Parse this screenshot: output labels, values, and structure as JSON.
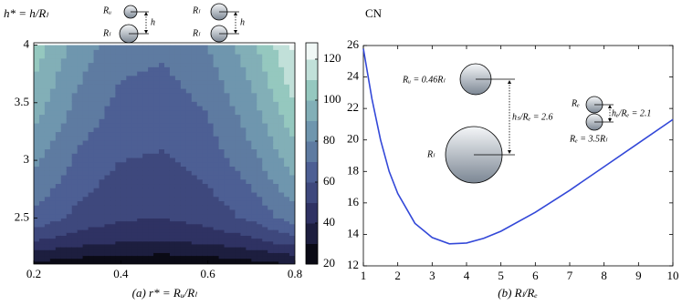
{
  "chart_data": [
    {
      "type": "contour",
      "ylabel": "h* = h/Rₗ",
      "xlabel": "(a) r* = Rᵤ/Rₗ",
      "annotations": [
        "Rᵤ",
        "Rₗ",
        "h",
        "Rₗ",
        "Rₗ",
        "h"
      ],
      "x": [
        0.2,
        0.3,
        0.4,
        0.5,
        0.6,
        0.7,
        0.8
      ],
      "y": [
        2.1,
        2.3,
        2.5,
        2.8,
        3.1,
        3.4,
        3.7,
        4.0
      ],
      "z": [
        [
          27,
          24,
          22,
          22,
          23,
          26,
          30
        ],
        [
          50,
          44,
          41,
          40,
          42,
          47,
          55
        ],
        [
          67,
          57,
          51,
          50,
          54,
          62,
          75
        ],
        [
          77,
          64,
          56,
          55,
          60,
          71,
          88
        ],
        [
          85,
          70,
          62,
          60,
          66,
          79,
          98
        ],
        [
          93,
          76,
          66,
          64,
          70,
          85,
          107
        ],
        [
          99,
          81,
          70,
          68,
          75,
          91,
          115
        ],
        [
          106,
          86,
          74,
          72,
          80,
          97,
          122
        ]
      ],
      "levels": [
        20,
        30,
        40,
        50,
        60,
        70,
        80,
        90,
        100,
        110,
        120,
        130
      ],
      "colormap": [
        "#000000",
        "#2a2b5a",
        "#4a5a92",
        "#6f96ae",
        "#98cbc0",
        "#ffffff"
      ],
      "xlim": [
        0.2,
        0.8
      ],
      "ylim": [
        2.1,
        4.02
      ],
      "xticks": [
        0.2,
        0.4,
        0.6,
        0.8
      ],
      "yticks": [
        2.5,
        3,
        3.5,
        4
      ],
      "clim": [
        20,
        128
      ],
      "cticks": [
        20,
        40,
        60,
        80,
        100,
        120
      ]
    },
    {
      "type": "line",
      "ylabel": "CN",
      "xlabel": "(b) Rₗ/Rₑ",
      "annotations": [
        "Rᵤ = 0.46Rₗ",
        "hₛ/Rₑ = 2.6",
        "Rₗ",
        "Rₑ",
        "hₑ/Rₑ = 2.1",
        "Rₑ = 3.5Rₗ"
      ],
      "x": [
        1,
        1.25,
        1.5,
        1.75,
        2,
        2.5,
        3,
        3.5,
        4,
        4.5,
        5,
        6,
        7,
        8,
        9,
        10
      ],
      "series": [
        {
          "color": "#3348d8",
          "values": [
            25.8,
            22.6,
            20.0,
            18.0,
            16.6,
            14.7,
            13.8,
            13.4,
            13.45,
            13.75,
            14.2,
            15.4,
            16.8,
            18.3,
            19.8,
            21.3
          ]
        }
      ],
      "xlim": [
        1,
        10
      ],
      "ylim": [
        12,
        26
      ],
      "xticks": [
        1,
        2,
        3,
        4,
        5,
        6,
        7,
        8,
        9,
        10
      ],
      "yticks": [
        12,
        14,
        16,
        18,
        20,
        22,
        24,
        26
      ]
    }
  ]
}
